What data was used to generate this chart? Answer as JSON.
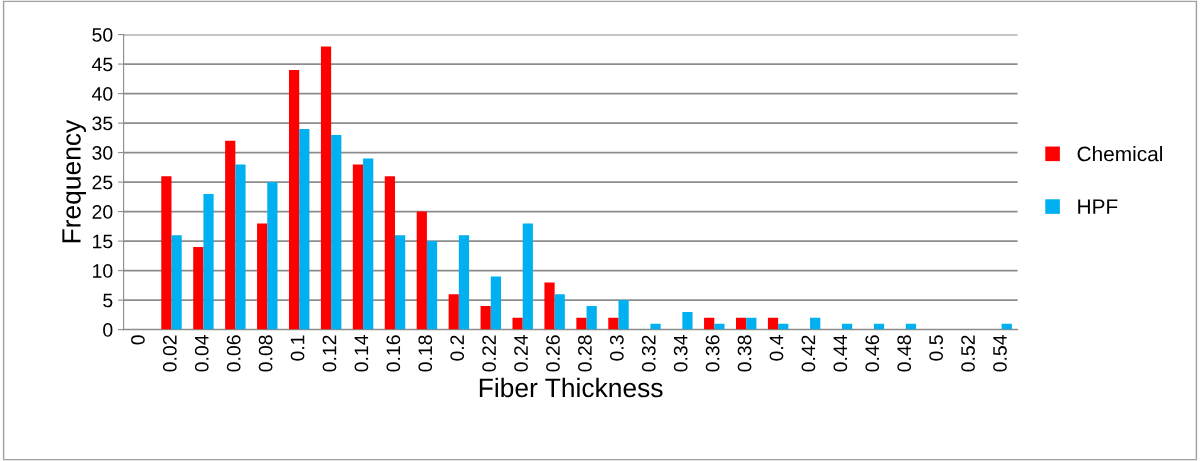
{
  "chart_data": {
    "type": "bar",
    "xlabel": "Fiber Thickness",
    "ylabel": "Frequency",
    "categories": [
      "0",
      "0.02",
      "0.04",
      "0.06",
      "0.08",
      "0.1",
      "0.12",
      "0.14",
      "0.16",
      "0.18",
      "0.2",
      "0.22",
      "0.24",
      "0.26",
      "0.28",
      "0.3",
      "0.32",
      "0.34",
      "0.36",
      "0.38",
      "0.4",
      "0.42",
      "0.44",
      "0.46",
      "0.48",
      "0.5",
      "0.52",
      "0.54"
    ],
    "series": [
      {
        "name": "Chemical",
        "color": "#ff0000",
        "values": [
          0,
          26,
          14,
          32,
          18,
          44,
          48,
          28,
          26,
          20,
          6,
          4,
          2,
          8,
          2,
          2,
          0,
          0,
          2,
          2,
          2,
          0,
          0,
          0,
          0,
          0,
          0,
          0
        ]
      },
      {
        "name": "HPF",
        "color": "#00b0f0",
        "values": [
          0,
          16,
          23,
          28,
          25,
          34,
          33,
          29,
          16,
          15,
          16,
          9,
          18,
          6,
          4,
          5,
          1,
          3,
          1,
          2,
          1,
          2,
          1,
          1,
          1,
          0,
          0,
          1
        ]
      }
    ],
    "ylim": [
      0,
      50
    ],
    "yticks": [
      0,
      5,
      10,
      15,
      20,
      25,
      30,
      35,
      40,
      45,
      50
    ],
    "grid": "y",
    "legend": "right"
  }
}
